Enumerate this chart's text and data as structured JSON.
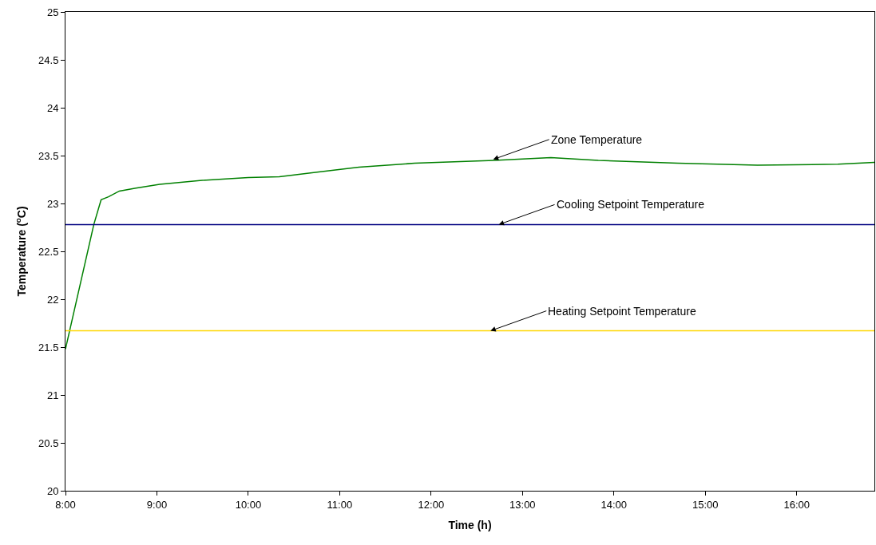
{
  "chart_data": {
    "type": "line",
    "xlabel": "Time (h)",
    "ylabel": "Temperature ($^{o}$C)",
    "x": [
      8,
      8.31,
      8.39,
      8.47,
      8.59,
      8.77,
      9.03,
      9.47,
      10,
      10.34,
      10.77,
      11.21,
      11.82,
      12.69,
      13.31,
      13.83,
      14.7,
      15.57,
      16.45,
      16.85
    ],
    "series": [
      {
        "color": "#008000",
        "values": [
          21.48,
          22.78,
          23.04,
          23.07,
          23.13,
          23.16,
          23.2,
          23.24,
          23.27,
          23.28,
          23.33,
          23.38,
          23.42,
          23.45,
          23.48,
          23.45,
          23.42,
          23.4,
          23.41,
          23.43
        ]
      }
    ],
    "ref_lines": [
      {
        "axis": "y",
        "value": 22.78,
        "color": "#000080"
      },
      {
        "axis": "y",
        "value": 21.67,
        "color": "#ffd700"
      }
    ],
    "annotations": [
      {
        "text": "Zone Temperature",
        "x": 12.68,
        "y": 23.46
      },
      {
        "text": "Cooling Setpoint Temperature",
        "x": 12.74,
        "y": 22.78
      },
      {
        "text": "Heating Setpoint Temperature",
        "x": 12.65,
        "y": 21.67
      }
    ],
    "xlim": [
      8,
      16.85
    ],
    "ylim": [
      20,
      25
    ],
    "xticks": [
      {
        "value": 8,
        "label": "8:00"
      },
      {
        "value": 9,
        "label": "9:00"
      },
      {
        "value": 10,
        "label": "10:00"
      },
      {
        "value": 11,
        "label": "11:00"
      },
      {
        "value": 12,
        "label": "12:00"
      },
      {
        "value": 13,
        "label": "13:00"
      },
      {
        "value": 14,
        "label": "14:00"
      },
      {
        "value": 15,
        "label": "15:00"
      },
      {
        "value": 16,
        "label": "16:00"
      }
    ],
    "yticks": [
      20,
      20.5,
      21,
      21.5,
      22,
      22.5,
      23,
      23.5,
      24,
      24.5,
      25
    ],
    "grid": false,
    "marker": "none",
    "line_style": "solid"
  }
}
